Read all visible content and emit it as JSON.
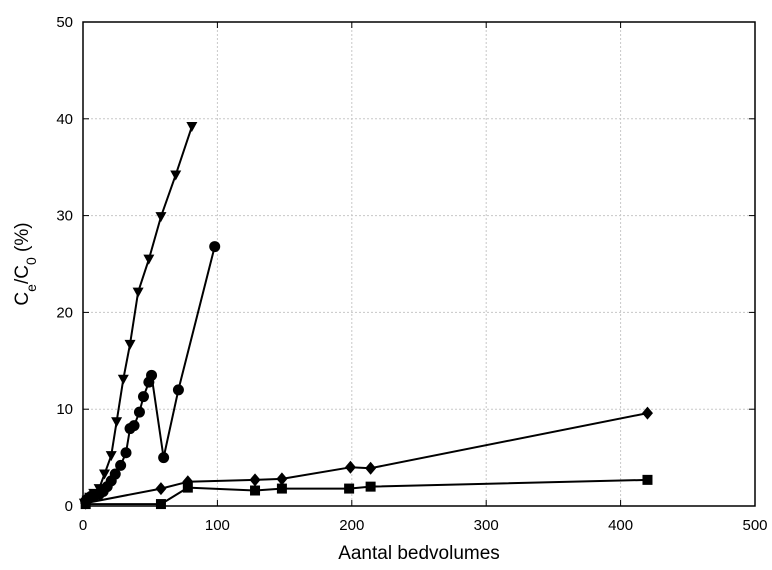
{
  "chart_data": {
    "type": "line",
    "xlabel": "Aantal bedvolumes",
    "ylabel": {
      "main": "C",
      "sub1": "e",
      "slash": "/C",
      "sub2": "0",
      "unit": " (%)"
    },
    "xlim": [
      0,
      500
    ],
    "ylim": [
      0,
      50
    ],
    "xticks": [
      0,
      100,
      200,
      300,
      400,
      500
    ],
    "yticks": [
      0,
      10,
      20,
      30,
      40,
      50
    ],
    "grid": true,
    "legend": "none",
    "colors": {
      "series": "#000000",
      "grid": "#c8c8c8"
    },
    "series": [
      {
        "marker": "triangle-down",
        "x": [
          1,
          3,
          5,
          8,
          12,
          16,
          21,
          25,
          30,
          35,
          41,
          49,
          58,
          69,
          81
        ],
        "y": [
          0.3,
          0.6,
          0.9,
          1.3,
          1.8,
          3.3,
          5.2,
          8.7,
          13.1,
          16.7,
          22.1,
          25.5,
          29.9,
          34.2,
          39.2
        ]
      },
      {
        "marker": "circle",
        "x": [
          2,
          4,
          6,
          9,
          12,
          15,
          18,
          21,
          24,
          28,
          32,
          35,
          38,
          42,
          45,
          49,
          51,
          60,
          71,
          98
        ],
        "y": [
          0.5,
          0.8,
          1.0,
          1.1,
          1.2,
          1.5,
          2.0,
          2.6,
          3.3,
          4.2,
          5.5,
          8.0,
          8.3,
          9.7,
          11.3,
          12.8,
          13.5,
          5.0,
          12.0,
          26.8
        ]
      },
      {
        "marker": "diamond",
        "x": [
          2,
          58,
          78,
          128,
          148,
          199,
          214,
          420
        ],
        "y": [
          0.3,
          1.8,
          2.5,
          2.7,
          2.8,
          4.0,
          3.9,
          9.6
        ]
      },
      {
        "marker": "square",
        "x": [
          2,
          58,
          78,
          128,
          148,
          198,
          214,
          420
        ],
        "y": [
          0.2,
          0.2,
          1.9,
          1.6,
          1.8,
          1.8,
          2.0,
          2.7
        ]
      }
    ]
  }
}
